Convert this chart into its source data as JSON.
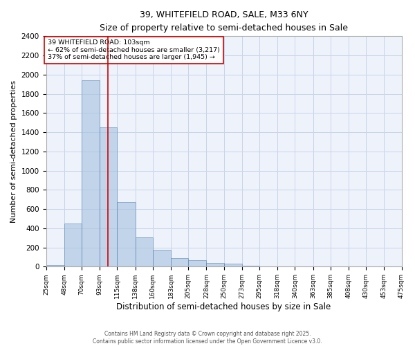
{
  "title": "39, WHITEFIELD ROAD, SALE, M33 6NY",
  "subtitle": "Size of property relative to semi-detached houses in Sale",
  "xlabel": "Distribution of semi-detached houses by size in Sale",
  "ylabel": "Number of semi-detached properties",
  "footer_line1": "Contains HM Land Registry data © Crown copyright and database right 2025.",
  "footer_line2": "Contains public sector information licensed under the Open Government Licence v3.0.",
  "annotation_line1": "39 WHITEFIELD ROAD: 103sqm",
  "annotation_line2": "← 62% of semi-detached houses are smaller (3,217)",
  "annotation_line3": "37% of semi-detached houses are larger (1,945) →",
  "property_size": 103,
  "bin_edges": [
    25,
    48,
    70,
    93,
    115,
    138,
    160,
    183,
    205,
    228,
    250,
    273,
    295,
    318,
    340,
    363,
    385,
    408,
    430,
    453,
    475
  ],
  "bar_heights": [
    20,
    450,
    1940,
    1450,
    670,
    305,
    175,
    90,
    65,
    40,
    30,
    12,
    5,
    5,
    0,
    0,
    0,
    0,
    0,
    0
  ],
  "bar_color": "#aac4e0",
  "bar_edge_color": "#5580b0",
  "bar_alpha": 0.65,
  "vline_color": "#cc0000",
  "vline_x": 103,
  "annotation_box_edge_color": "#cc0000",
  "background_color": "#eef2fb",
  "grid_color": "#c8d4e8",
  "ylim": [
    0,
    2400
  ],
  "yticks": [
    0,
    200,
    400,
    600,
    800,
    1000,
    1200,
    1400,
    1600,
    1800,
    2000,
    2200,
    2400
  ]
}
